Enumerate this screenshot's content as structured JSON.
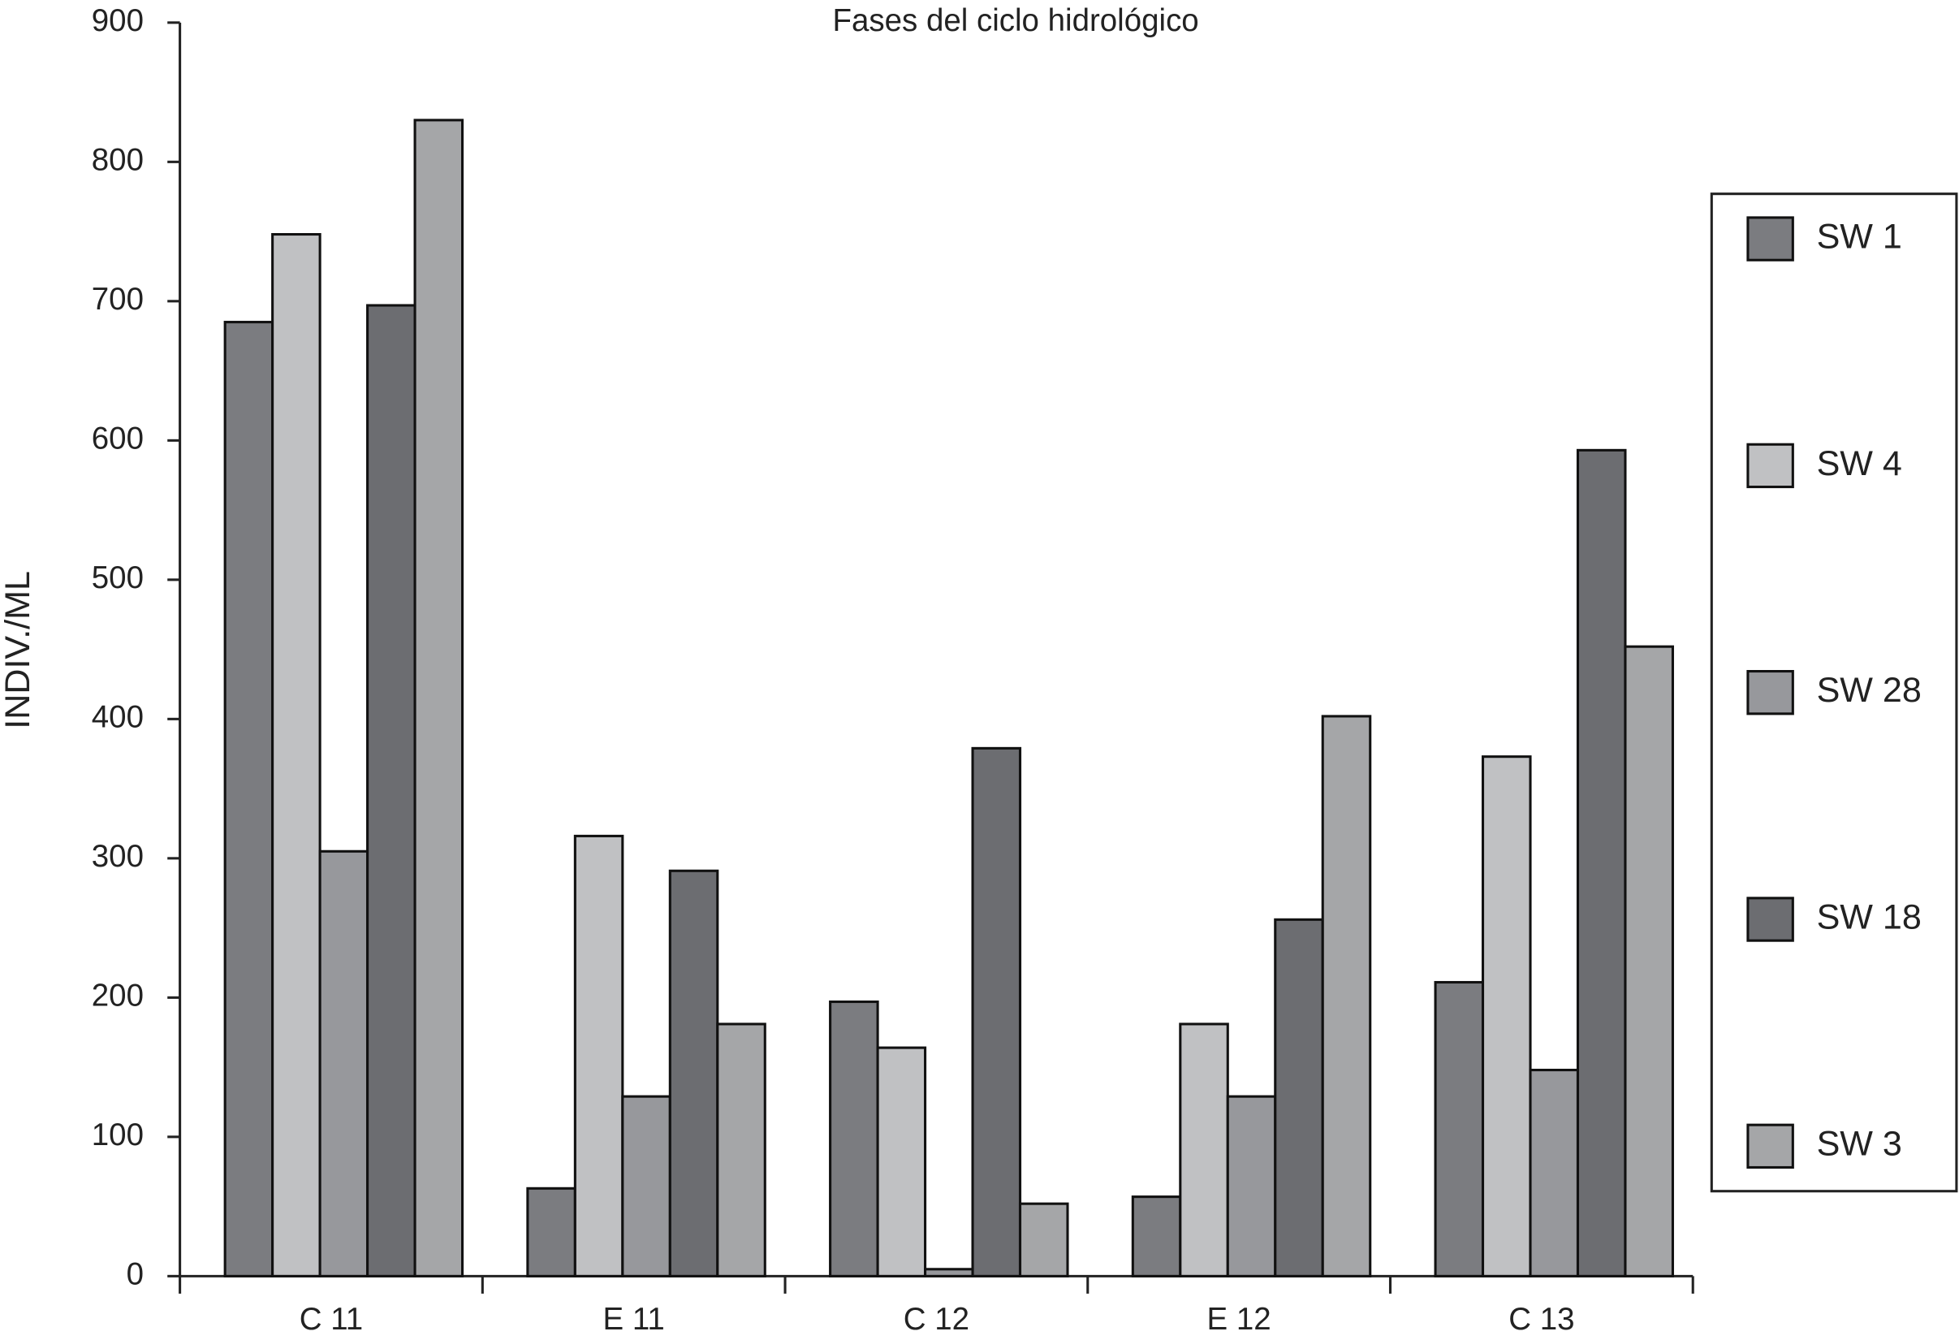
{
  "chart_data": {
    "type": "bar",
    "title": "Fases del ciclo hidrológico",
    "y_label": "INDIV./ML",
    "categories": [
      "C 11",
      "E 11",
      "C 12",
      "E 12",
      "C 13"
    ],
    "series": [
      {
        "name": "SW 1",
        "color": "#7b7c80",
        "values": [
          685,
          63,
          197,
          57,
          211
        ]
      },
      {
        "name": "SW 4",
        "color": "#c0c1c3",
        "values": [
          748,
          316,
          164,
          181,
          373
        ]
      },
      {
        "name": "SW 28",
        "color": "#97989c",
        "values": [
          305,
          129,
          5,
          129,
          148
        ]
      },
      {
        "name": "SW 18",
        "color": "#6c6d71",
        "values": [
          697,
          291,
          379,
          256,
          593
        ]
      },
      {
        "name": "SW 3",
        "color": "#a5a6a8",
        "values": [
          830,
          181,
          52,
          402,
          452
        ]
      }
    ],
    "ylim": [
      0,
      900
    ],
    "yticks": [
      0,
      100,
      200,
      300,
      400,
      500,
      600,
      700,
      800,
      900
    ],
    "grid": false,
    "legend": "right"
  }
}
